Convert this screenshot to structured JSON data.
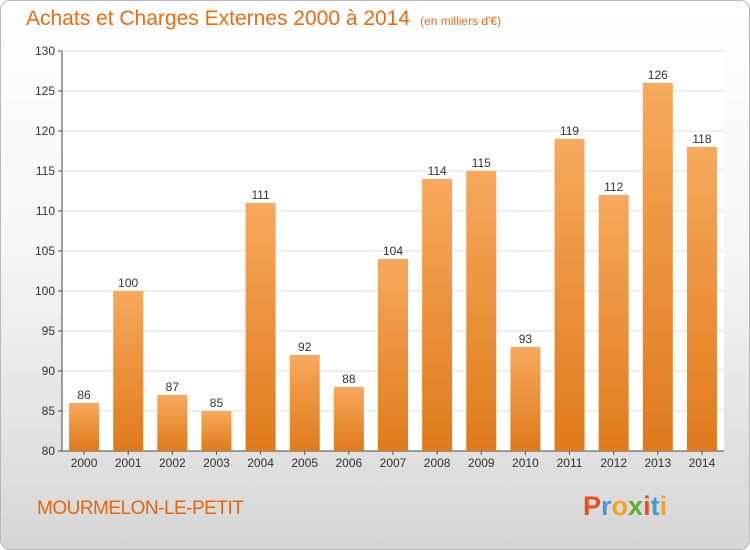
{
  "title": "Achats et Charges Externes 2000 à 2014",
  "title_unit": "(en milliers d'€)",
  "commune": "MOURMELON-LE-PETIT",
  "logo": {
    "letters": [
      "P",
      "r",
      "o",
      "x",
      "i",
      "t",
      "i"
    ],
    "colors": [
      "#e8511e",
      "#3d9dd9",
      "#f2a424",
      "#5cae3c",
      "#e8511e",
      "#3d9dd9",
      "#f2a424"
    ]
  },
  "colors": {
    "bar_light": "#f7a95c",
    "bar_dark": "#df7a1c",
    "title": "#ea6b12"
  },
  "chart_data": {
    "type": "bar",
    "categories": [
      "2000",
      "2001",
      "2002",
      "2003",
      "2004",
      "2005",
      "2006",
      "2007",
      "2008",
      "2009",
      "2010",
      "2011",
      "2012",
      "2013",
      "2014"
    ],
    "values": [
      86,
      100,
      87,
      85,
      111,
      92,
      88,
      104,
      114,
      115,
      93,
      119,
      112,
      126,
      118
    ],
    "ylim": [
      80,
      130
    ],
    "yticks": [
      80,
      85,
      90,
      95,
      100,
      105,
      110,
      115,
      120,
      125,
      130
    ],
    "grid": true
  }
}
